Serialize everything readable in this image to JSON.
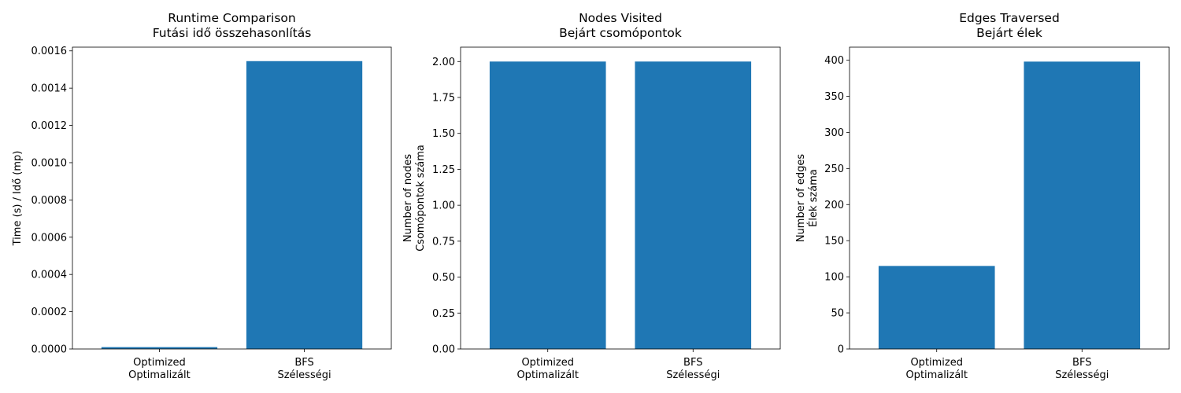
{
  "colors": {
    "bar": "#1f77b4",
    "axis": "#000000",
    "background": "#ffffff"
  },
  "chart_data": [
    {
      "type": "bar",
      "title": [
        "Runtime Comparison",
        "Futási idő összehasonlítás"
      ],
      "xlabel": "",
      "ylabel": [
        "Time (s) / Idő (mp)"
      ],
      "categories": [
        [
          "Optimized",
          "Optimalizált"
        ],
        [
          "BFS",
          "Szélességi"
        ]
      ],
      "values": [
        1e-05,
        0.001545
      ],
      "ylim": [
        0,
        0.00162
      ],
      "yticks": [
        0,
        0.0002,
        0.0004,
        0.0006,
        0.0008,
        0.001,
        0.0012,
        0.0014,
        0.0016
      ],
      "ytick_labels": [
        "0.0000",
        "0.0002",
        "0.0004",
        "0.0006",
        "0.0008",
        "0.0010",
        "0.0012",
        "0.0014",
        "0.0016"
      ],
      "grid": false
    },
    {
      "type": "bar",
      "title": [
        "Nodes Visited",
        "Bejárt csomópontok"
      ],
      "xlabel": "",
      "ylabel": [
        "Number of nodes",
        "Csomópontok száma"
      ],
      "categories": [
        [
          "Optimized",
          "Optimalizált"
        ],
        [
          "BFS",
          "Szélességi"
        ]
      ],
      "values": [
        2,
        2
      ],
      "ylim": [
        0,
        2.1
      ],
      "yticks": [
        0,
        0.25,
        0.5,
        0.75,
        1,
        1.25,
        1.5,
        1.75,
        2
      ],
      "ytick_labels": [
        "0.00",
        "0.25",
        "0.50",
        "0.75",
        "1.00",
        "1.25",
        "1.50",
        "1.75",
        "2.00"
      ],
      "grid": false
    },
    {
      "type": "bar",
      "title": [
        "Edges Traversed",
        "Bejárt élek"
      ],
      "xlabel": "",
      "ylabel": [
        "Number of edges",
        "Élek száma"
      ],
      "categories": [
        [
          "Optimized",
          "Optimalizált"
        ],
        [
          "BFS",
          "Szélességi"
        ]
      ],
      "values": [
        115,
        398
      ],
      "ylim": [
        0,
        418
      ],
      "yticks": [
        0,
        50,
        100,
        150,
        200,
        250,
        300,
        350,
        400
      ],
      "ytick_labels": [
        "0",
        "50",
        "100",
        "150",
        "200",
        "250",
        "300",
        "350",
        "400"
      ],
      "grid": false
    }
  ]
}
